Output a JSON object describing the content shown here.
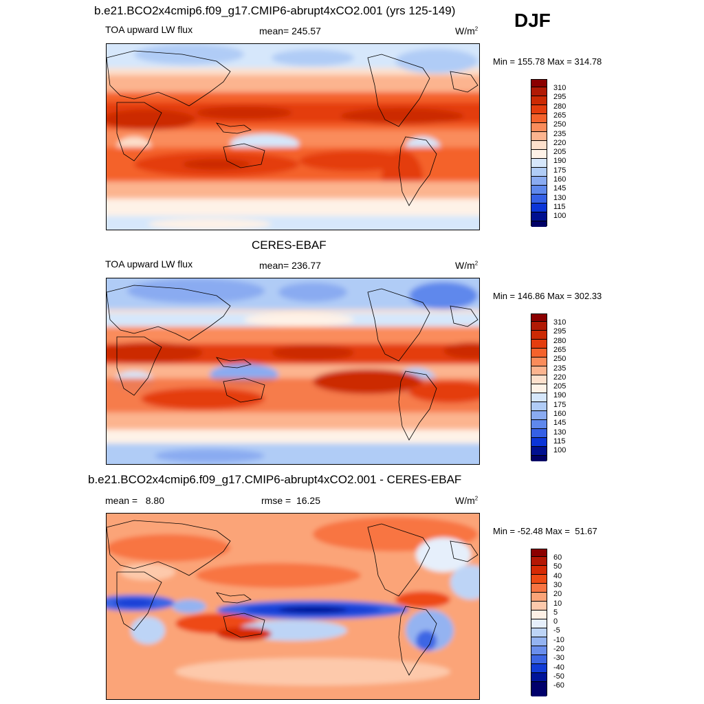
{
  "season": "DJF",
  "panels": [
    {
      "title": "b.e21.BCO2x4cmip6.f09_g17.CMIP6-abrupt4xCO2.001 (yrs 125-149)",
      "variable": "TOA upward LW flux",
      "stat": "mean= 245.57",
      "units": "W/m",
      "units_sup": "2",
      "minmax": "Min = 155.78 Max = 314.78",
      "colorbar_labels": [
        "310",
        "295",
        "280",
        "265",
        "250",
        "235",
        "220",
        "205",
        "190",
        "175",
        "160",
        "145",
        "130",
        "115",
        "100"
      ]
    },
    {
      "title": "CERES-EBAF",
      "variable": "TOA upward LW flux",
      "stat": "mean= 236.77",
      "units": "W/m",
      "units_sup": "2",
      "minmax": "Min = 146.86 Max = 302.33",
      "colorbar_labels": [
        "310",
        "295",
        "280",
        "265",
        "250",
        "235",
        "220",
        "205",
        "190",
        "175",
        "160",
        "145",
        "130",
        "115",
        "100"
      ]
    },
    {
      "title": "b.e21.BCO2x4cmip6.f09_g17.CMIP6-abrupt4xCO2.001 - CERES-EBAF",
      "variable": "mean =   8.80",
      "stat": "rmse =  16.25",
      "units": "W/m",
      "units_sup": "2",
      "minmax": "Min = -52.48 Max =  51.67",
      "colorbar_labels": [
        "60",
        "50",
        "40",
        "30",
        "20",
        "10",
        "5",
        "0",
        "-5",
        "-10",
        "-20",
        "-30",
        "-40",
        "-50",
        "-60"
      ]
    }
  ],
  "colors": {
    "abs_scale": [
      "#8b0000",
      "#b11a05",
      "#cc2a04",
      "#e43d0e",
      "#f4622c",
      "#fa8c5b",
      "#fcb48f",
      "#fde0cc",
      "#fef2e7",
      "#d6e7fb",
      "#b0ccf6",
      "#8aabf1",
      "#5f88ec",
      "#3560e6",
      "#0b35d8",
      "#001090",
      "#000066"
    ],
    "diff_scale": [
      "#8b0000",
      "#b41704",
      "#d62a04",
      "#ee4a14",
      "#f87442",
      "#fba478",
      "#fdc9ab",
      "#fef0e5",
      "#e6effb",
      "#bdd4f6",
      "#94b3f1",
      "#6a8eec",
      "#3d66e4",
      "#123cd6",
      "#001499",
      "#00006b"
    ]
  }
}
